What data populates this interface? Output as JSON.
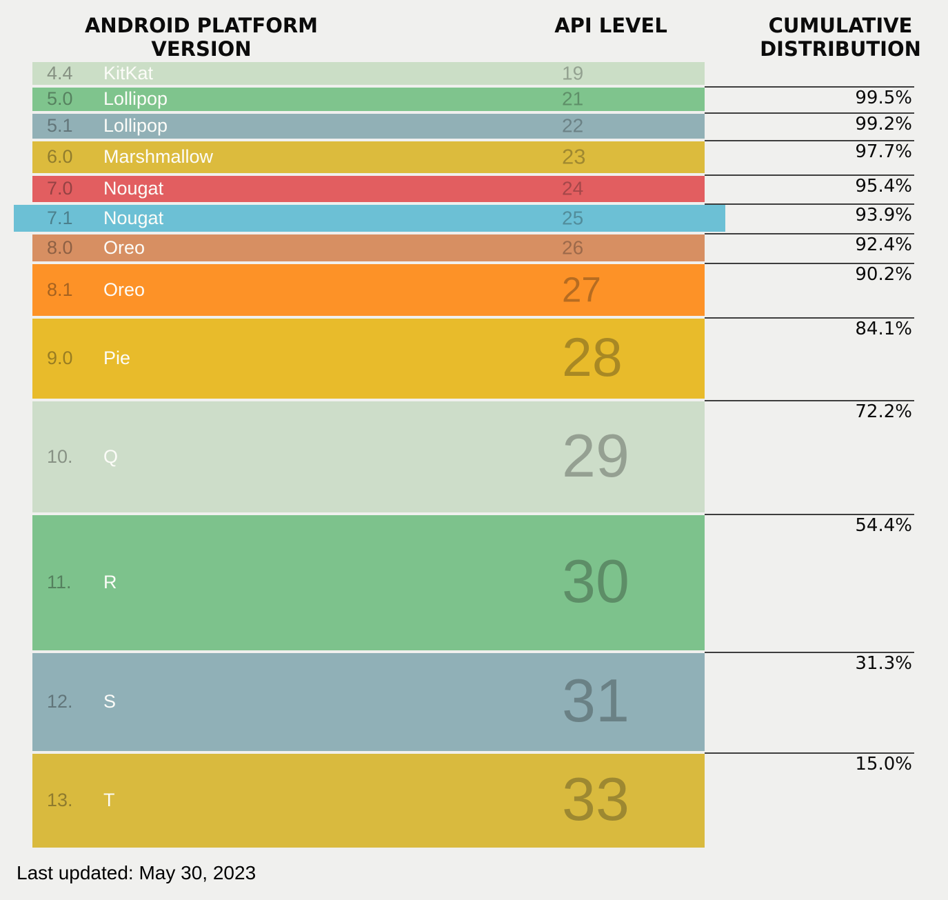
{
  "header": {
    "platform_version": "ANDROID PLATFORM VERSION",
    "api_level": "API LEVEL",
    "cumulative_distribution": "CUMULATIVE DISTRIBUTION"
  },
  "rows": [
    {
      "version": "4.4",
      "name": "KitKat",
      "api": "19",
      "cumulative": "",
      "color": "#cbdec6",
      "highlighted": false
    },
    {
      "version": "5.0",
      "name": "Lollipop",
      "api": "21",
      "cumulative": "99.5%",
      "color": "#7fc48d",
      "highlighted": false
    },
    {
      "version": "5.1",
      "name": "Lollipop",
      "api": "22",
      "cumulative": "99.2%",
      "color": "#91b0b6",
      "highlighted": false
    },
    {
      "version": "6.0",
      "name": "Marshmallow",
      "api": "23",
      "cumulative": "97.7%",
      "color": "#dcbb3d",
      "highlighted": false
    },
    {
      "version": "7.0",
      "name": "Nougat",
      "api": "24",
      "cumulative": "95.4%",
      "color": "#e25e60",
      "highlighted": false
    },
    {
      "version": "7.1",
      "name": "Nougat",
      "api": "25",
      "cumulative": "93.9%",
      "color": "#6cc0d5",
      "highlighted": true
    },
    {
      "version": "8.0",
      "name": "Oreo",
      "api": "26",
      "cumulative": "92.4%",
      "color": "#d78f62",
      "highlighted": false
    },
    {
      "version": "8.1",
      "name": "Oreo",
      "api": "27",
      "cumulative": "90.2%",
      "color": "#fd9227",
      "highlighted": false
    },
    {
      "version": "9.0",
      "name": "Pie",
      "api": "28",
      "cumulative": "84.1%",
      "color": "#e8bb2b",
      "highlighted": false
    },
    {
      "version": "10.",
      "name": "Q",
      "api": "29",
      "cumulative": "72.2%",
      "color": "#cdddc9",
      "highlighted": false
    },
    {
      "version": "11.",
      "name": "R",
      "api": "30",
      "cumulative": "54.4%",
      "color": "#7dc28c",
      "highlighted": false
    },
    {
      "version": "12.",
      "name": "S",
      "api": "31",
      "cumulative": "31.3%",
      "color": "#90b0b7",
      "highlighted": false
    },
    {
      "version": "13.",
      "name": "T",
      "api": "33",
      "cumulative": "15.0%",
      "color": "#d9ba3e",
      "highlighted": false
    }
  ],
  "footer": {
    "last_updated": "Last updated: May 30, 2023"
  },
  "chart_data": {
    "type": "table",
    "title": "",
    "columns": [
      "ANDROID PLATFORM VERSION",
      "API LEVEL",
      "CUMULATIVE DISTRIBUTION"
    ],
    "rows": [
      {
        "platform_version": "4.4 KitKat",
        "api_level": 19,
        "cumulative_distribution_pct": null
      },
      {
        "platform_version": "5.0 Lollipop",
        "api_level": 21,
        "cumulative_distribution_pct": 99.5
      },
      {
        "platform_version": "5.1 Lollipop",
        "api_level": 22,
        "cumulative_distribution_pct": 99.2
      },
      {
        "platform_version": "6.0 Marshmallow",
        "api_level": 23,
        "cumulative_distribution_pct": 97.7
      },
      {
        "platform_version": "7.0 Nougat",
        "api_level": 24,
        "cumulative_distribution_pct": 95.4
      },
      {
        "platform_version": "7.1 Nougat",
        "api_level": 25,
        "cumulative_distribution_pct": 93.9
      },
      {
        "platform_version": "8.0 Oreo",
        "api_level": 26,
        "cumulative_distribution_pct": 92.4
      },
      {
        "platform_version": "8.1 Oreo",
        "api_level": 27,
        "cumulative_distribution_pct": 90.2
      },
      {
        "platform_version": "9.0 Pie",
        "api_level": 28,
        "cumulative_distribution_pct": 84.1
      },
      {
        "platform_version": "10. Q",
        "api_level": 29,
        "cumulative_distribution_pct": 72.2
      },
      {
        "platform_version": "11. R",
        "api_level": 30,
        "cumulative_distribution_pct": 54.4
      },
      {
        "platform_version": "12. S",
        "api_level": 31,
        "cumulative_distribution_pct": 31.3
      },
      {
        "platform_version": "13. T",
        "api_level": 33,
        "cumulative_distribution_pct": 15.0
      }
    ],
    "highlighted_api_level": 25,
    "last_updated": "May 30, 2023",
    "layout_hint": "row height proportional to version share; cumulative % listed beside each row"
  }
}
